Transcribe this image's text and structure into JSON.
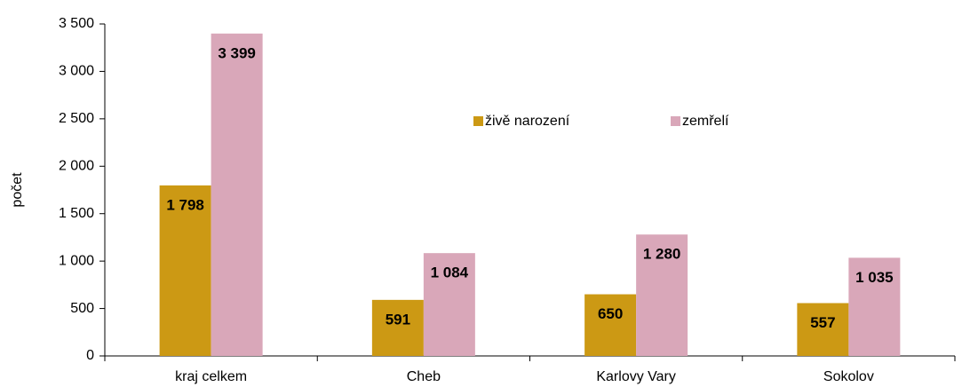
{
  "chart_data": {
    "type": "bar",
    "categories": [
      "kraj celkem",
      "Cheb",
      "Karlovy Vary",
      "Sokolov"
    ],
    "series": [
      {
        "name": "živě narození",
        "color": "#cc9914",
        "values": [
          1798,
          591,
          650,
          557
        ],
        "value_labels": [
          "1 798",
          "591",
          "650",
          "557"
        ]
      },
      {
        "name": "zemřelí",
        "color": "#d9a7b9",
        "values": [
          3399,
          1084,
          1280,
          1035
        ],
        "value_labels": [
          "3 399",
          "1 084",
          "1 280",
          "1 035"
        ]
      }
    ],
    "ylabel": "počet",
    "ylim": [
      0,
      3500
    ],
    "yticks": [
      0,
      500,
      {
        "value": 1000,
        "label": "1 000"
      },
      {
        "value": 1500,
        "label": "1 500"
      },
      {
        "value": 2000,
        "label": "2 000"
      },
      {
        "value": 2500,
        "label": "2 500"
      },
      {
        "value": 3000,
        "label": "3 000"
      },
      {
        "value": 3500,
        "label": "3 500"
      }
    ],
    "grid": false
  }
}
